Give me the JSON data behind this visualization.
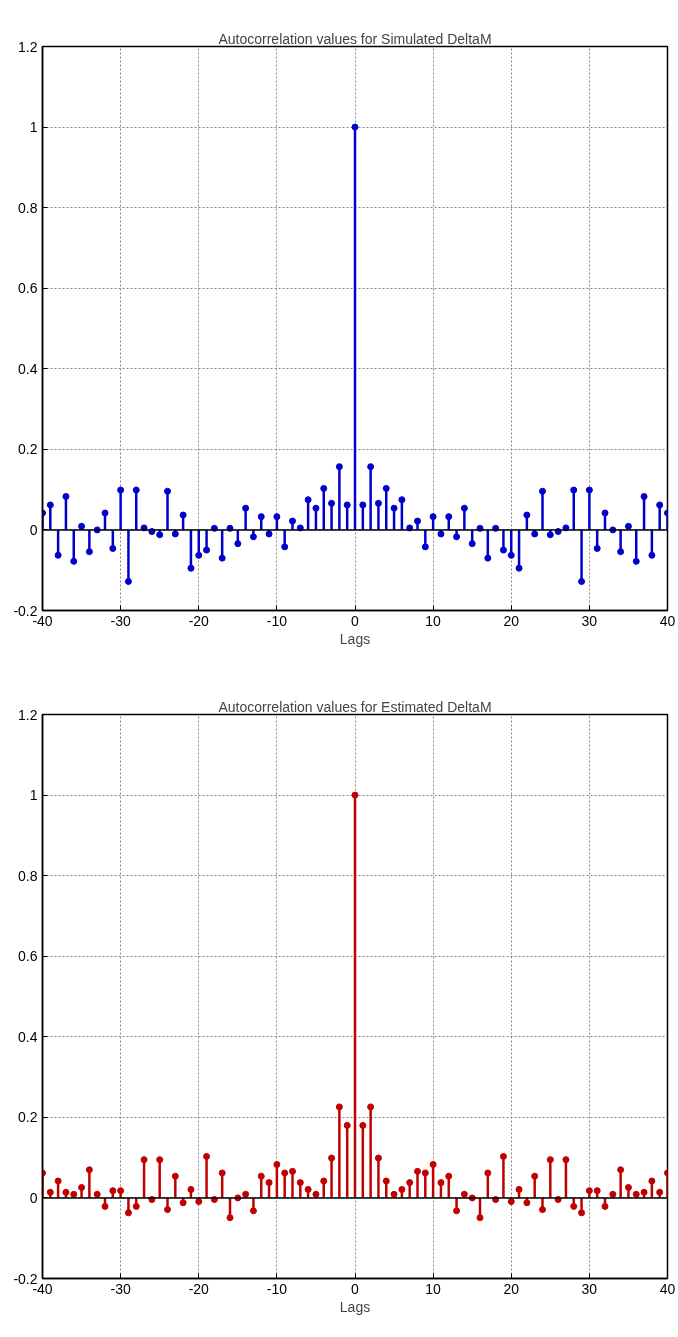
{
  "chart_data": [
    {
      "type": "lollipop",
      "title": "Autocorrelation values for Simulated DeltaM",
      "xlabel": "Lags",
      "x": [
        -40,
        -39,
        -38,
        -37,
        -36,
        -35,
        -34,
        -33,
        -32,
        -31,
        -30,
        -29,
        -28,
        -27,
        -26,
        -25,
        -24,
        -23,
        -22,
        -21,
        -20,
        -19,
        -18,
        -17,
        -16,
        -15,
        -14,
        -13,
        -12,
        -11,
        -10,
        -9,
        -8,
        -7,
        -6,
        -5,
        -4,
        -3,
        -2,
        -1,
        0,
        1,
        2,
        3,
        4,
        5,
        6,
        7,
        8,
        9,
        10,
        11,
        12,
        13,
        14,
        15,
        16,
        17,
        18,
        19,
        20,
        21,
        22,
        23,
        24,
        25,
        26,
        27,
        28,
        29,
        30,
        31,
        32,
        33,
        34,
        35,
        36,
        37,
        38,
        39,
        40
      ],
      "series": [
        {
          "color": "#0000cc",
          "values": [
            0.042,
            0.062,
            -0.063,
            0.083,
            -0.078,
            0.009,
            -0.054,
            0.0,
            0.042,
            -0.046,
            0.099,
            -0.128,
            0.099,
            0.005,
            -0.004,
            -0.012,
            0.096,
            -0.01,
            0.037,
            -0.095,
            -0.063,
            -0.05,
            0.004,
            -0.07,
            0.004,
            -0.034,
            0.054,
            -0.017,
            0.033,
            -0.01,
            0.033,
            -0.042,
            0.022,
            0.005,
            0.075,
            0.054,
            0.103,
            0.066,
            0.157,
            0.062,
            1.0,
            0.062,
            0.157,
            0.066,
            0.103,
            0.054,
            0.075,
            0.005,
            0.022,
            -0.042,
            0.033,
            -0.01,
            0.033,
            -0.017,
            0.054,
            -0.034,
            0.004,
            -0.07,
            0.004,
            -0.05,
            -0.063,
            -0.095,
            0.037,
            -0.01,
            0.096,
            -0.012,
            -0.004,
            0.005,
            0.099,
            -0.128,
            0.099,
            -0.046,
            0.042,
            0.0,
            -0.054,
            0.009,
            -0.078,
            0.083,
            -0.063,
            0.062,
            0.042
          ]
        }
      ],
      "xlim": [
        -40,
        40
      ],
      "ylim": [
        -0.2,
        1.2
      ],
      "xticks": [
        -40,
        -30,
        -20,
        -10,
        0,
        10,
        20,
        30,
        40
      ],
      "yticks": [
        -0.2,
        0,
        0.2,
        0.4,
        0.6,
        0.8,
        1,
        1.2
      ],
      "grid": true,
      "marker": "circle"
    },
    {
      "type": "lollipop",
      "title": "Autocorrelation values for Estimated DeltaM",
      "xlabel": "Lags",
      "x": [
        -40,
        -39,
        -38,
        -37,
        -36,
        -35,
        -34,
        -33,
        -32,
        -31,
        -30,
        -29,
        -28,
        -27,
        -26,
        -25,
        -24,
        -23,
        -22,
        -21,
        -20,
        -19,
        -18,
        -17,
        -16,
        -15,
        -14,
        -13,
        -12,
        -11,
        -10,
        -9,
        -8,
        -7,
        -6,
        -5,
        -4,
        -3,
        -2,
        -1,
        0,
        1,
        2,
        3,
        4,
        5,
        6,
        7,
        8,
        9,
        10,
        11,
        12,
        13,
        14,
        15,
        16,
        17,
        18,
        19,
        20,
        21,
        22,
        23,
        24,
        25,
        26,
        27,
        28,
        29,
        30,
        31,
        32,
        33,
        34,
        35,
        36,
        37,
        38,
        39,
        40
      ],
      "series": [
        {
          "color": "#c00000",
          "values": [
            0.062,
            0.014,
            0.042,
            0.014,
            0.009,
            0.026,
            0.07,
            0.009,
            -0.021,
            0.018,
            0.018,
            -0.037,
            -0.021,
            0.095,
            -0.004,
            0.095,
            -0.029,
            0.054,
            -0.012,
            0.021,
            -0.009,
            0.103,
            -0.004,
            0.062,
            -0.049,
            0.0,
            0.009,
            -0.032,
            0.054,
            0.038,
            0.083,
            0.062,
            0.066,
            0.038,
            0.021,
            0.009,
            0.042,
            0.099,
            0.226,
            0.18,
            1.0,
            0.18,
            0.226,
            0.099,
            0.042,
            0.009,
            0.021,
            0.038,
            0.066,
            0.062,
            0.083,
            0.038,
            0.054,
            -0.032,
            0.009,
            0.0,
            -0.049,
            0.062,
            -0.004,
            0.103,
            -0.009,
            0.021,
            -0.012,
            0.054,
            -0.029,
            0.095,
            -0.004,
            0.095,
            -0.021,
            -0.037,
            0.018,
            0.018,
            -0.021,
            0.009,
            0.07,
            0.026,
            0.009,
            0.014,
            0.042,
            0.014,
            0.062
          ]
        }
      ],
      "xlim": [
        -40,
        40
      ],
      "ylim": [
        -0.2,
        1.2
      ],
      "xticks": [
        -40,
        -30,
        -20,
        -10,
        0,
        10,
        20,
        30,
        40
      ],
      "yticks": [
        -0.2,
        0,
        0.2,
        0.4,
        0.6,
        0.8,
        1,
        1.2
      ],
      "grid": true,
      "marker": "circle"
    }
  ]
}
